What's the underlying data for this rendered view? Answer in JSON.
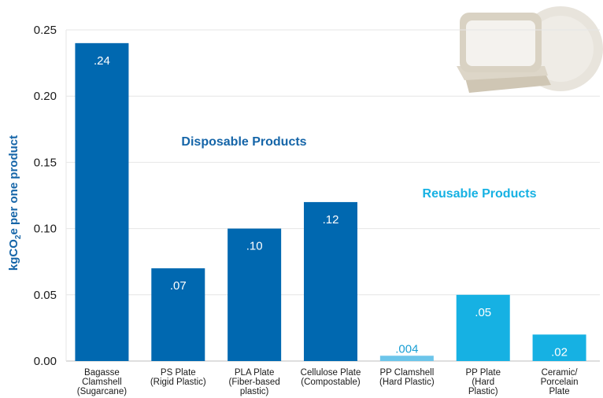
{
  "chart_data": {
    "type": "bar",
    "ylabel_main": "kgCO",
    "ylabel_sub": "2",
    "ylabel_tail": "e per one product",
    "ylim": [
      0,
      0.25
    ],
    "yticks": [
      "0.00",
      "0.05",
      "0.10",
      "0.15",
      "0.20",
      "0.25"
    ],
    "grid": true,
    "categories": [
      [
        "Bagasse",
        "Clamshell",
        "(Sugarcane)"
      ],
      [
        "PS Plate",
        "(Rigid Plastic)"
      ],
      [
        "PLA Plate",
        "(Fiber-based",
        "plastic)"
      ],
      [
        "Cellulose Plate",
        "(Compostable)"
      ],
      [
        "PP Clamshell",
        "(Hard Plastic)"
      ],
      [
        "PP Plate",
        "(Hard",
        "Plastic)"
      ],
      [
        "Ceramic/",
        "Porcelain",
        "Plate"
      ]
    ],
    "values": [
      0.24,
      0.07,
      0.1,
      0.12,
      0.004,
      0.05,
      0.02
    ],
    "value_labels": [
      ".24",
      ".07",
      ".10",
      ".12",
      ".004",
      ".05",
      ".02"
    ],
    "bar_colors": [
      "#0068b0",
      "#0068b0",
      "#0068b0",
      "#0068b0",
      "#6cc5ea",
      "#16b1e3",
      "#16b1e3"
    ],
    "groups": [
      {
        "label": "Disposable Products",
        "color": "#1565a8"
      },
      {
        "label": "Reusable Products",
        "color": "#16b1e3"
      }
    ],
    "illustration": "food-container-and-plate"
  }
}
